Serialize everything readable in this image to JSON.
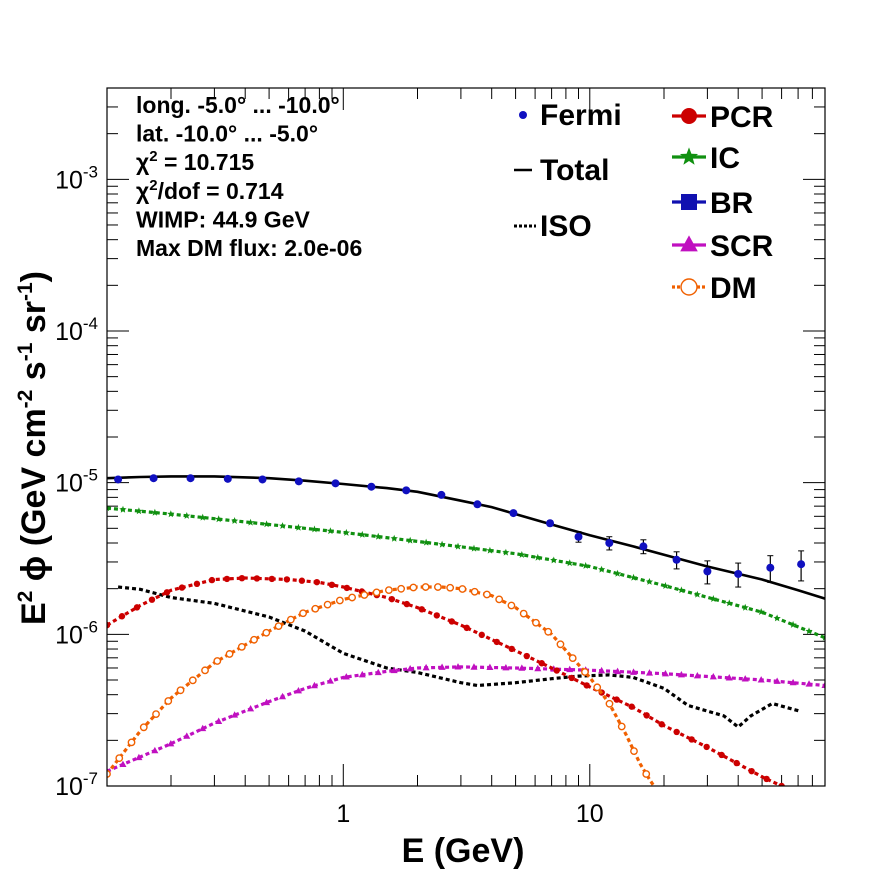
{
  "chart_data": {
    "type": "line",
    "xlabel": "E (GeV)",
    "ylabel_parts": {
      "a": "E",
      "b": "2",
      "c": " ϕ (GeV cm",
      "d": "-2",
      "e": " s",
      "f": "-1",
      "g": " sr",
      "h": "-1",
      "i": ")"
    },
    "x_scale": "log",
    "y_scale": "log",
    "xlim": [
      0.11,
      90
    ],
    "ylim": [
      1e-07,
      0.004
    ],
    "x_tick_labels": [
      {
        "x": 1,
        "label": "1"
      },
      {
        "x": 10,
        "label": "10"
      }
    ],
    "y_tick_labels": [
      {
        "y": 1e-07,
        "base": "10",
        "exp": "-7"
      },
      {
        "y": 1e-06,
        "base": "10",
        "exp": "-6"
      },
      {
        "y": 1e-05,
        "base": "10",
        "exp": "-5"
      },
      {
        "y": 0.0001,
        "base": "10",
        "exp": "-4"
      },
      {
        "y": 0.001,
        "base": "10",
        "exp": "-3"
      }
    ],
    "info_text": [
      {
        "id": "long",
        "parts": [
          {
            "t": "long. -5.0° ... -10.0°"
          }
        ]
      },
      {
        "id": "lat",
        "parts": [
          {
            "t": "lat. -10.0° ... -5.0°"
          }
        ]
      },
      {
        "id": "chi2",
        "parts": [
          {
            "t": "χ"
          },
          {
            "t": "2",
            "sup": true
          },
          {
            "t": " = 10.715"
          }
        ]
      },
      {
        "id": "chi2dof",
        "parts": [
          {
            "t": "χ"
          },
          {
            "t": "2",
            "sup": true
          },
          {
            "t": "/dof = 0.714"
          }
        ]
      },
      {
        "id": "wimp",
        "parts": [
          {
            "t": "WIMP: 44.9 GeV"
          }
        ]
      },
      {
        "id": "maxdm",
        "parts": [
          {
            "t": "Max DM flux: 2.0e-06"
          }
        ]
      }
    ],
    "legend_left": [
      {
        "label": "Fermi",
        "symbol": "point",
        "color": "#1010c0"
      },
      {
        "label": "Total",
        "symbol": "line",
        "color": "#000000"
      },
      {
        "label": "ISO",
        "symbol": "dotted",
        "color": "#000000"
      }
    ],
    "legend_right": [
      {
        "label": "PCR",
        "symbol": "circle",
        "color": "#cc0000"
      },
      {
        "label": "IC",
        "symbol": "star",
        "color": "#109010"
      },
      {
        "label": "BR",
        "symbol": "square",
        "color": "#1010b0"
      },
      {
        "label": "SCR",
        "symbol": "triangle",
        "color": "#c010c0"
      },
      {
        "label": "DM",
        "symbol": "open-circle",
        "color": "#f06000"
      }
    ],
    "series": [
      {
        "name": "Fermi",
        "kind": "points",
        "color": "#1010c0",
        "x": [
          0.122,
          0.17,
          0.24,
          0.34,
          0.47,
          0.66,
          0.93,
          1.3,
          1.8,
          2.5,
          3.5,
          4.9,
          6.9,
          9.0,
          12.0,
          16.5,
          22.5,
          30.0,
          40.0,
          54.0,
          72.0
        ],
        "y": [
          1.05e-05,
          1.07e-05,
          1.07e-05,
          1.06e-05,
          1.05e-05,
          1.02e-05,
          9.9e-06,
          9.4e-06,
          8.9e-06,
          8.3e-06,
          7.2e-06,
          6.3e-06,
          5.4e-06,
          4.4e-06,
          4e-06,
          3.8e-06,
          3.1e-06,
          2.6e-06,
          2.5e-06,
          2.75e-06,
          2.9e-06
        ],
        "err": [
          1e-07,
          1e-07,
          1e-07,
          1e-07,
          1e-07,
          1e-07,
          1e-07,
          1e-07,
          2e-07,
          2e-07,
          2e-07,
          2e-07,
          2e-07,
          3.5e-07,
          4e-07,
          4e-07,
          4e-07,
          4.5e-07,
          4.5e-07,
          5.5e-07,
          6.5e-07
        ]
      },
      {
        "name": "Total",
        "kind": "line",
        "color": "#000000",
        "x": [
          0.11,
          0.15,
          0.2,
          0.3,
          0.5,
          0.7,
          1.0,
          1.5,
          2.0,
          3.0,
          4.0,
          5.0,
          7.0,
          10.0,
          15.0,
          20.0,
          30.0,
          50.0,
          70.0,
          90.0
        ],
        "y": [
          1.07e-05,
          1.09e-05,
          1.1e-05,
          1.1e-05,
          1.07e-05,
          1.03e-05,
          9.8e-06,
          9.2e-06,
          8.7e-06,
          7.6e-06,
          6.9e-06,
          6.2e-06,
          5.3e-06,
          4.5e-06,
          3.8e-06,
          3.35e-06,
          2.8e-06,
          2.3e-06,
          1.95e-06,
          1.72e-06
        ]
      },
      {
        "name": "ISO",
        "kind": "dotted",
        "color": "#000000",
        "x": [
          0.122,
          0.15,
          0.2,
          0.3,
          0.5,
          0.7,
          1.0,
          1.5,
          2.0,
          3.0,
          3.5,
          5.0,
          7.0,
          9.0,
          12.0,
          15.0,
          20.0,
          25.0,
          35.0,
          40.0,
          45.0,
          55.0,
          72.0
        ],
        "y": [
          2.05e-06,
          1.98e-06,
          1.75e-06,
          1.6e-06,
          1.3e-06,
          1.05e-06,
          7.5e-07,
          6e-07,
          5.6e-07,
          4.8e-07,
          4.6e-07,
          4.8e-07,
          5.1e-07,
          5.3e-07,
          5.4e-07,
          5.2e-07,
          4.4e-07,
          3.4e-07,
          2.9e-07,
          2.45e-07,
          2.9e-07,
          3.5e-07,
          3.1e-07
        ]
      },
      {
        "name": "IC",
        "kind": "markers",
        "marker": "star",
        "color": "#109010",
        "x": [
          0.11,
          0.2,
          0.5,
          1.0,
          2.0,
          5.0,
          10.0,
          20.0,
          50.0,
          90.0
        ],
        "y": [
          6.8e-06,
          6.2e-06,
          5.3e-06,
          4.7e-06,
          4.1e-06,
          3.4e-06,
          2.8e-06,
          2.1e-06,
          1.4e-06,
          9.5e-07
        ]
      },
      {
        "name": "PCR",
        "kind": "markers",
        "marker": "circle",
        "color": "#cc0000",
        "x": [
          0.11,
          0.15,
          0.2,
          0.3,
          0.4,
          0.6,
          0.8,
          1.0,
          1.5,
          2.0,
          3.0,
          5.0,
          7.0,
          10.0,
          15.0,
          20.0,
          30.0,
          50.0,
          60.0
        ],
        "y": [
          1.15e-06,
          1.55e-06,
          1.95e-06,
          2.3e-06,
          2.35e-06,
          2.3e-06,
          2.2e-06,
          2.05e-06,
          1.75e-06,
          1.5e-06,
          1.15e-06,
          7.8e-07,
          6e-07,
          4.5e-07,
          3.3e-07,
          2.5e-07,
          1.8e-07,
          1.15e-07,
          1e-07
        ]
      },
      {
        "name": "SCR",
        "kind": "markers",
        "marker": "triangle",
        "color": "#c010c0",
        "x": [
          0.11,
          0.2,
          0.3,
          0.5,
          0.7,
          1.0,
          1.5,
          2.0,
          3.0,
          5.0,
          10.0,
          20.0,
          50.0,
          90.0
        ],
        "y": [
          1.25e-07,
          1.9e-07,
          2.6e-07,
          3.6e-07,
          4.4e-07,
          5.2e-07,
          5.7e-07,
          6e-07,
          6.1e-07,
          6e-07,
          5.8e-07,
          5.5e-07,
          5e-07,
          4.6e-07
        ]
      },
      {
        "name": "DM",
        "kind": "markers",
        "marker": "open-circle",
        "color": "#f06000",
        "x": [
          0.11,
          0.15,
          0.2,
          0.3,
          0.5,
          0.7,
          1.0,
          1.5,
          2.0,
          2.5,
          3.0,
          4.0,
          5.0,
          7.0,
          10.0,
          12.0,
          14.0,
          16.0,
          17.5,
          19.0
        ],
        "y": [
          1.2e-07,
          2.3e-07,
          3.8e-07,
          6.5e-07,
          1.05e-06,
          1.4e-06,
          1.7e-06,
          1.95e-06,
          2.05e-06,
          2.05e-06,
          2e-06,
          1.8e-06,
          1.5e-06,
          1e-06,
          5.2e-07,
          3.5e-07,
          2.2e-07,
          1.4e-07,
          1.1e-07,
          9e-08
        ]
      }
    ]
  }
}
